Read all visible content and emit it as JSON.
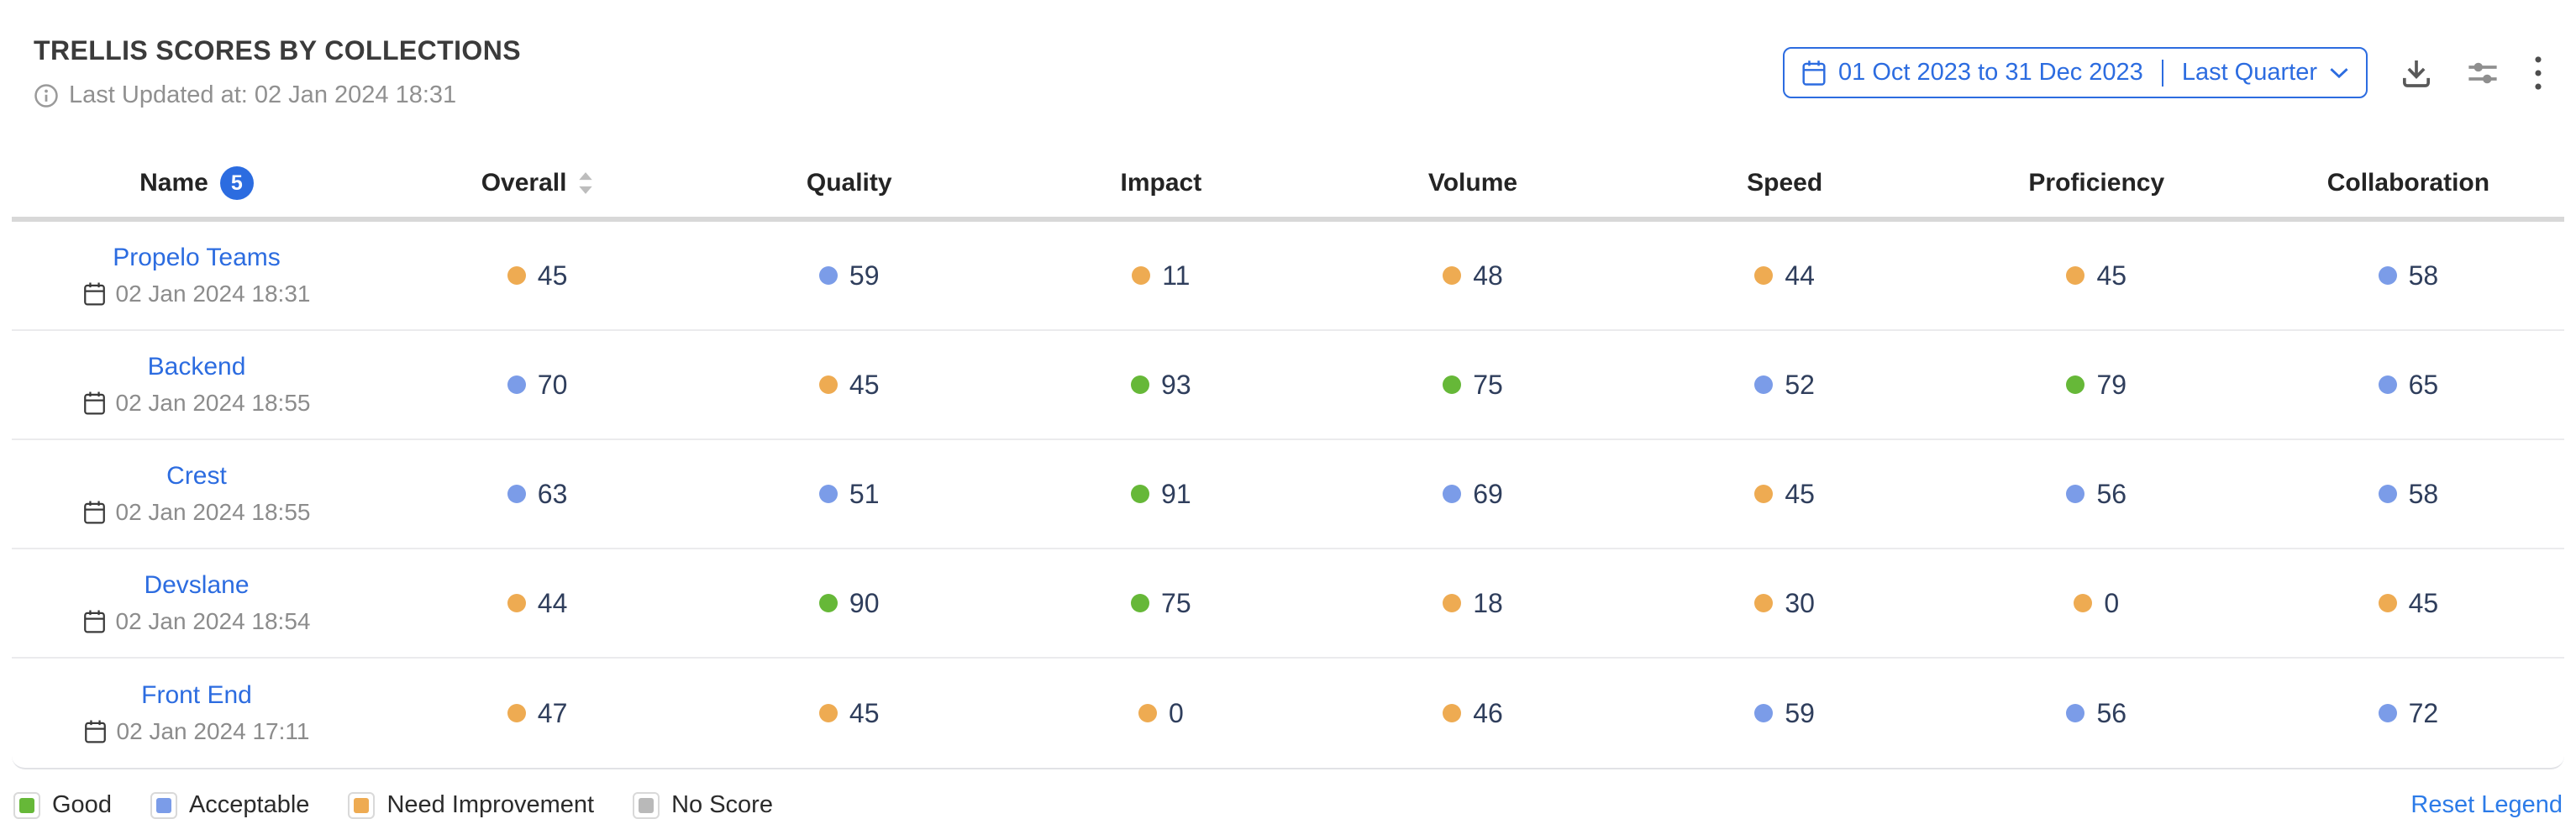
{
  "colors": {
    "good": "#66b838",
    "acceptable": "#7b9ce8",
    "need_improvement": "#eeab52",
    "no_score": "#b9b9b9",
    "accent": "#2c6ce0",
    "link": "#2c7be8",
    "value_text": "#2f3e5c"
  },
  "header": {
    "title": "TRELLIS SCORES BY COLLECTIONS",
    "last_updated": "Last Updated at: 02 Jan 2024 18:31",
    "info_icon": "info-circle"
  },
  "controls": {
    "calendar_icon": "calendar",
    "date_range": "01 Oct 2023 to 31 Dec 2023",
    "date_preset": "Last Quarter",
    "chevron_icon": "chevron-down",
    "download_icon": "download",
    "filter_icon": "sliders",
    "menu_icon": "kebab-vertical"
  },
  "table": {
    "columns": [
      {
        "key": "name",
        "label": "Name",
        "badge": "5"
      },
      {
        "key": "overall",
        "label": "Overall",
        "sortable": true
      },
      {
        "key": "quality",
        "label": "Quality"
      },
      {
        "key": "impact",
        "label": "Impact"
      },
      {
        "key": "volume",
        "label": "Volume"
      },
      {
        "key": "speed",
        "label": "Speed"
      },
      {
        "key": "proficiency",
        "label": "Proficiency"
      },
      {
        "key": "collaboration",
        "label": "Collaboration"
      }
    ],
    "rows": [
      {
        "name": "Propelo Teams",
        "timestamp": "02 Jan 2024 18:31",
        "scores": [
          {
            "column": "overall",
            "value": "45",
            "status": "need_improvement"
          },
          {
            "column": "quality",
            "value": "59",
            "status": "acceptable"
          },
          {
            "column": "impact",
            "value": "11",
            "status": "need_improvement"
          },
          {
            "column": "volume",
            "value": "48",
            "status": "need_improvement"
          },
          {
            "column": "speed",
            "value": "44",
            "status": "need_improvement"
          },
          {
            "column": "proficiency",
            "value": "45",
            "status": "need_improvement"
          },
          {
            "column": "collaboration",
            "value": "58",
            "status": "acceptable"
          }
        ]
      },
      {
        "name": "Backend",
        "timestamp": "02 Jan 2024 18:55",
        "scores": [
          {
            "column": "overall",
            "value": "70",
            "status": "acceptable"
          },
          {
            "column": "quality",
            "value": "45",
            "status": "need_improvement"
          },
          {
            "column": "impact",
            "value": "93",
            "status": "good"
          },
          {
            "column": "volume",
            "value": "75",
            "status": "good"
          },
          {
            "column": "speed",
            "value": "52",
            "status": "acceptable"
          },
          {
            "column": "proficiency",
            "value": "79",
            "status": "good"
          },
          {
            "column": "collaboration",
            "value": "65",
            "status": "acceptable"
          }
        ]
      },
      {
        "name": "Crest",
        "timestamp": "02 Jan 2024 18:55",
        "scores": [
          {
            "column": "overall",
            "value": "63",
            "status": "acceptable"
          },
          {
            "column": "quality",
            "value": "51",
            "status": "acceptable"
          },
          {
            "column": "impact",
            "value": "91",
            "status": "good"
          },
          {
            "column": "volume",
            "value": "69",
            "status": "acceptable"
          },
          {
            "column": "speed",
            "value": "45",
            "status": "need_improvement"
          },
          {
            "column": "proficiency",
            "value": "56",
            "status": "acceptable"
          },
          {
            "column": "collaboration",
            "value": "58",
            "status": "acceptable"
          }
        ]
      },
      {
        "name": "Devslane",
        "timestamp": "02 Jan 2024 18:54",
        "scores": [
          {
            "column": "overall",
            "value": "44",
            "status": "need_improvement"
          },
          {
            "column": "quality",
            "value": "90",
            "status": "good"
          },
          {
            "column": "impact",
            "value": "75",
            "status": "good"
          },
          {
            "column": "volume",
            "value": "18",
            "status": "need_improvement"
          },
          {
            "column": "speed",
            "value": "30",
            "status": "need_improvement"
          },
          {
            "column": "proficiency",
            "value": "0",
            "status": "need_improvement"
          },
          {
            "column": "collaboration",
            "value": "45",
            "status": "need_improvement"
          }
        ]
      },
      {
        "name": "Front End",
        "timestamp": "02 Jan 2024 17:11",
        "scores": [
          {
            "column": "overall",
            "value": "47",
            "status": "need_improvement"
          },
          {
            "column": "quality",
            "value": "45",
            "status": "need_improvement"
          },
          {
            "column": "impact",
            "value": "0",
            "status": "need_improvement"
          },
          {
            "column": "volume",
            "value": "46",
            "status": "need_improvement"
          },
          {
            "column": "speed",
            "value": "59",
            "status": "acceptable"
          },
          {
            "column": "proficiency",
            "value": "56",
            "status": "acceptable"
          },
          {
            "column": "collaboration",
            "value": "72",
            "status": "acceptable"
          }
        ]
      }
    ]
  },
  "legend": {
    "items": [
      {
        "label": "Good",
        "status": "good"
      },
      {
        "label": "Acceptable",
        "status": "acceptable"
      },
      {
        "label": "Need Improvement",
        "status": "need_improvement"
      },
      {
        "label": "No Score",
        "status": "no_score"
      }
    ],
    "reset_label": "Reset Legend"
  }
}
